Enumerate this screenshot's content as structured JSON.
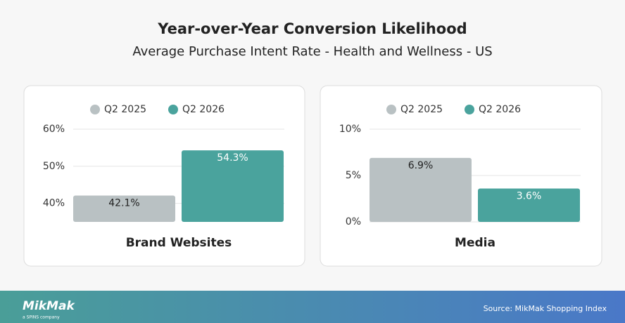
{
  "title": "Year-over-Year Conversion Likelihood",
  "subtitle": "Average Purchase Intent Rate - Health and Wellness - US",
  "logo": "MikMak",
  "logo_tagline": "a SPINS company",
  "source": "Source: MikMak Shopping Index",
  "chart_data": [
    {
      "type": "bar",
      "categories": [
        "Brand Websites"
      ],
      "series": [
        {
          "name": "Q2 2025",
          "color": "#b9c1c3",
          "values": [
            42.1
          ],
          "value_labels": [
            "42.1%"
          ]
        },
        {
          "name": "Q2 2026",
          "color": "#4aa39d",
          "values": [
            54.3
          ],
          "value_labels": [
            "54.3%"
          ]
        }
      ],
      "ylim": [
        35,
        60
      ],
      "yticks": [
        {
          "value": 40,
          "label": "40%"
        },
        {
          "value": 50,
          "label": "50%"
        },
        {
          "value": 60,
          "label": "60%"
        }
      ],
      "grid": true
    },
    {
      "type": "bar",
      "categories": [
        "Media"
      ],
      "series": [
        {
          "name": "Q2 2025",
          "color": "#b9c1c3",
          "values": [
            6.9
          ],
          "value_labels": [
            "6.9%"
          ]
        },
        {
          "name": "Q2 2026",
          "color": "#4aa39d",
          "values": [
            3.6
          ],
          "value_labels": [
            "3.6%"
          ]
        }
      ],
      "ylim": [
        0,
        10
      ],
      "yticks": [
        {
          "value": 0,
          "label": "0%"
        },
        {
          "value": 5,
          "label": "5%"
        },
        {
          "value": 10,
          "label": "10%"
        }
      ],
      "grid": true
    }
  ]
}
